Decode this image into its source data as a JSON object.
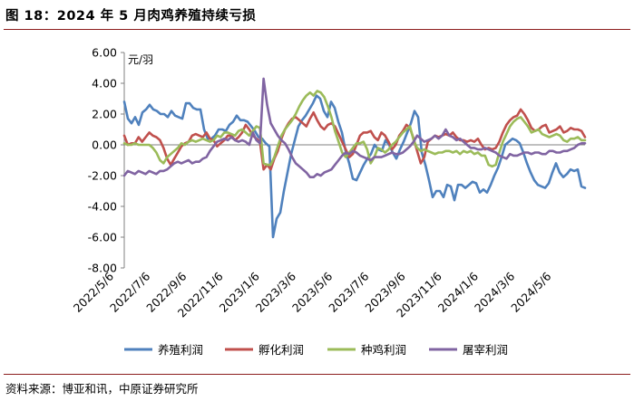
{
  "header": {
    "title": "图 18：2024 年 5 月肉鸡养殖持续亏损"
  },
  "footer": {
    "source": "资料来源：博亚和讯，中原证券研究所"
  },
  "chart_data": {
    "type": "line",
    "unit_label": "元/羽",
    "ylim": [
      -8,
      6
    ],
    "yticks": [
      "6.00",
      "4.00",
      "2.00",
      "0.00",
      "-2.00",
      "-4.00",
      "-6.00",
      "-8.00"
    ],
    "ytick_values": [
      6,
      4,
      2,
      0,
      -2,
      -4,
      -6,
      -8
    ],
    "xtick_labels": [
      "2022/5/6",
      "2022/7/6",
      "2022/9/6",
      "2022/11/6",
      "2023/1/6",
      "2023/3/6",
      "2023/5/6",
      "2023/7/6",
      "2023/9/6",
      "2023/11/6",
      "2024/1/6",
      "2024/3/6",
      "2024/5/6"
    ],
    "x_period": "weekly, 2022-05-06 to 2024-06",
    "legend_position": "bottom",
    "grid": false,
    "colors": [
      "#4f81bd",
      "#c0504d",
      "#9bbb59",
      "#8064a2"
    ],
    "series": [
      {
        "name": "养殖利润",
        "values": [
          2.8,
          1.7,
          1.4,
          1.8,
          1.3,
          2.1,
          2.3,
          2.6,
          2.3,
          2.2,
          2.0,
          2.0,
          1.8,
          2.2,
          1.9,
          1.8,
          1.7,
          2.7,
          2.7,
          2.4,
          2.3,
          2.3,
          1.0,
          0.4,
          0.4,
          0.6,
          1.0,
          1.0,
          0.9,
          1.3,
          1.5,
          1.9,
          1.6,
          1.6,
          1.5,
          1.2,
          0.9,
          0.5,
          0.4,
          0.1,
          -0.1,
          -6.0,
          -4.8,
          -4.4,
          -3.0,
          -1.8,
          -0.6,
          0.3,
          1.2,
          1.6,
          1.9,
          2.3,
          2.7,
          3.2,
          3.0,
          2.2,
          1.8,
          2.8,
          2.4,
          1.5,
          0.8,
          -0.4,
          -1.2,
          -2.2,
          -2.3,
          -1.8,
          -1.3,
          -0.9,
          -0.6,
          0.0,
          -0.3,
          -0.4,
          0.3,
          0.0,
          -0.5,
          -0.9,
          -0.3,
          0.2,
          0.8,
          1.4,
          2.2,
          1.8,
          -0.5,
          -1.3,
          -2.3,
          -3.4,
          -3.0,
          -3.0,
          -3.4,
          -2.6,
          -2.7,
          -3.6,
          -2.6,
          -2.6,
          -2.8,
          -2.6,
          -2.4,
          -2.5,
          -3.1,
          -2.9,
          -3.1,
          -2.6,
          -2.0,
          -1.5,
          -0.8,
          0.0,
          0.2,
          0.4,
          0.3,
          0.1,
          -0.5,
          -1.2,
          -1.8,
          -2.3,
          -2.6,
          -2.7,
          -2.8,
          -2.5,
          -1.8,
          -1.2,
          -1.8,
          -2.1,
          -1.9,
          -1.6,
          -1.7,
          -1.6,
          -2.7,
          -2.8
        ]
      },
      {
        "name": "孵化利润",
        "values": [
          0.6,
          0.0,
          0.1,
          0.1,
          0.5,
          0.2,
          0.5,
          0.8,
          0.6,
          0.5,
          0.3,
          -0.2,
          -0.9,
          -1.3,
          -0.9,
          -0.5,
          -0.1,
          0.1,
          0.2,
          0.6,
          0.7,
          0.6,
          0.5,
          0.8,
          0.4,
          0.3,
          -0.1,
          0.1,
          0.3,
          0.6,
          0.6,
          0.3,
          0.5,
          0.8,
          1.3,
          1.0,
          0.6,
          0.4,
          0.2,
          -1.6,
          -1.3,
          -1.6,
          -0.9,
          -0.4,
          0.4,
          1.0,
          1.4,
          1.7,
          1.8,
          1.6,
          1.4,
          1.2,
          1.7,
          2.1,
          1.6,
          1.2,
          1.0,
          1.3,
          1.4,
          1.2,
          0.7,
          0.2,
          -0.3,
          -0.8,
          -0.6,
          0.0,
          0.6,
          0.8,
          0.8,
          0.9,
          0.5,
          0.3,
          0.8,
          0.6,
          0.2,
          -0.3,
          0.0,
          0.6,
          0.9,
          1.3,
          1.1,
          0.4,
          -0.4,
          -1.2,
          -0.8,
          0.2,
          0.4,
          0.6,
          0.5,
          0.6,
          0.7,
          0.6,
          0.8,
          0.5,
          0.3,
          0.3,
          0.2,
          0.3,
          0.2,
          0.4,
          0.0,
          -0.3,
          -0.2,
          -0.3,
          -0.2,
          0.2,
          0.8,
          1.3,
          1.6,
          1.8,
          1.9,
          2.3,
          2.0,
          1.6,
          1.1,
          0.9,
          1.0,
          1.2,
          1.3,
          0.8,
          0.9,
          1.0,
          1.2,
          0.8,
          0.9,
          1.1,
          1.0,
          1.0,
          0.9,
          0.5
        ]
      },
      {
        "name": "种鸡利润",
        "values": [
          0.1,
          0.0,
          0.0,
          0.1,
          0.0,
          0.0,
          0.0,
          0.0,
          -0.2,
          -0.5,
          -1.0,
          -1.2,
          -0.8,
          -0.6,
          -0.4,
          -0.2,
          0.1,
          0.0,
          0.2,
          0.3,
          0.2,
          0.3,
          0.4,
          0.3,
          0.2,
          0.3,
          0.6,
          0.5,
          0.8,
          0.8,
          0.7,
          0.6,
          0.9,
          1.0,
          0.8,
          0.6,
          0.9,
          1.2,
          1.1,
          -1.2,
          -1.3,
          -1.3,
          -0.8,
          -0.1,
          0.6,
          1.0,
          1.3,
          1.6,
          2.0,
          2.5,
          2.9,
          3.2,
          3.4,
          3.2,
          3.5,
          3.4,
          3.1,
          2.5,
          1.8,
          0.9,
          0.2,
          -0.5,
          -0.8,
          -0.5,
          -0.2,
          0.1,
          0.1,
          0.2,
          -0.3,
          -1.2,
          -0.8,
          -0.2,
          -0.3,
          -0.5,
          -0.3,
          0.0,
          0.2,
          0.5,
          0.8,
          1.0,
          1.2,
          0.3,
          -0.2,
          -0.4,
          -0.3,
          -0.4,
          -0.5,
          -0.6,
          -0.5,
          -0.5,
          -0.4,
          -0.4,
          -0.5,
          -0.4,
          -0.6,
          -0.4,
          -0.5,
          -0.4,
          -0.6,
          -0.5,
          -0.7,
          -0.7,
          -1.3,
          -1.4,
          -1.3,
          -0.5,
          0.2,
          0.7,
          1.2,
          1.5,
          1.7,
          1.8,
          1.5,
          1.2,
          0.8,
          0.9,
          1.0,
          0.7,
          0.6,
          0.5,
          0.6,
          0.7,
          0.6,
          0.3,
          0.2,
          0.4,
          0.4,
          0.5,
          0.3,
          0.3
        ]
      },
      {
        "name": "屠宰利润",
        "values": [
          -2.0,
          -1.7,
          -1.8,
          -1.9,
          -1.7,
          -1.8,
          -1.9,
          -1.7,
          -1.8,
          -1.9,
          -1.7,
          -1.7,
          -1.6,
          -1.4,
          -1.2,
          -1.1,
          -1.2,
          -1.1,
          -1.0,
          -1.2,
          -1.1,
          -1.1,
          -0.9,
          -0.8,
          -0.4,
          -0.1,
          0.2,
          0.3,
          0.4,
          0.3,
          0.5,
          0.3,
          0.2,
          0.3,
          0.2,
          0.0,
          0.8,
          0.3,
          0.1,
          4.3,
          2.6,
          1.4,
          1.0,
          0.6,
          0.3,
          0.1,
          -0.3,
          -0.8,
          -1.2,
          -1.4,
          -1.6,
          -1.8,
          -2.1,
          -2.1,
          -1.9,
          -2.0,
          -1.8,
          -1.7,
          -1.6,
          -1.3,
          -1.0,
          -0.7,
          -0.5,
          -0.6,
          -0.4,
          -0.5,
          -0.7,
          -0.8,
          -0.9,
          -1.0,
          -0.8,
          -0.8,
          -0.8,
          -0.7,
          -0.6,
          -0.5,
          -0.6,
          -0.6,
          -0.5,
          -0.3,
          -0.1,
          0.2,
          0.6,
          0.4,
          0.2,
          0.3,
          0.4,
          0.6,
          0.4,
          0.6,
          1.0,
          0.6,
          0.5,
          0.3,
          0.4,
          0.2,
          0.0,
          -0.2,
          -0.2,
          -0.3,
          -0.3,
          -0.2,
          -0.3,
          -0.4,
          -0.5,
          -0.7,
          -0.8,
          -0.9,
          -0.6,
          -0.7,
          -0.7,
          -0.6,
          -0.5,
          -0.5,
          -0.6,
          -0.5,
          -0.5,
          -0.6,
          -0.6,
          -0.4,
          -0.4,
          -0.5,
          -0.5,
          -0.4,
          -0.4,
          -0.3,
          -0.2,
          0.0,
          0.1,
          0.1
        ]
      }
    ]
  }
}
